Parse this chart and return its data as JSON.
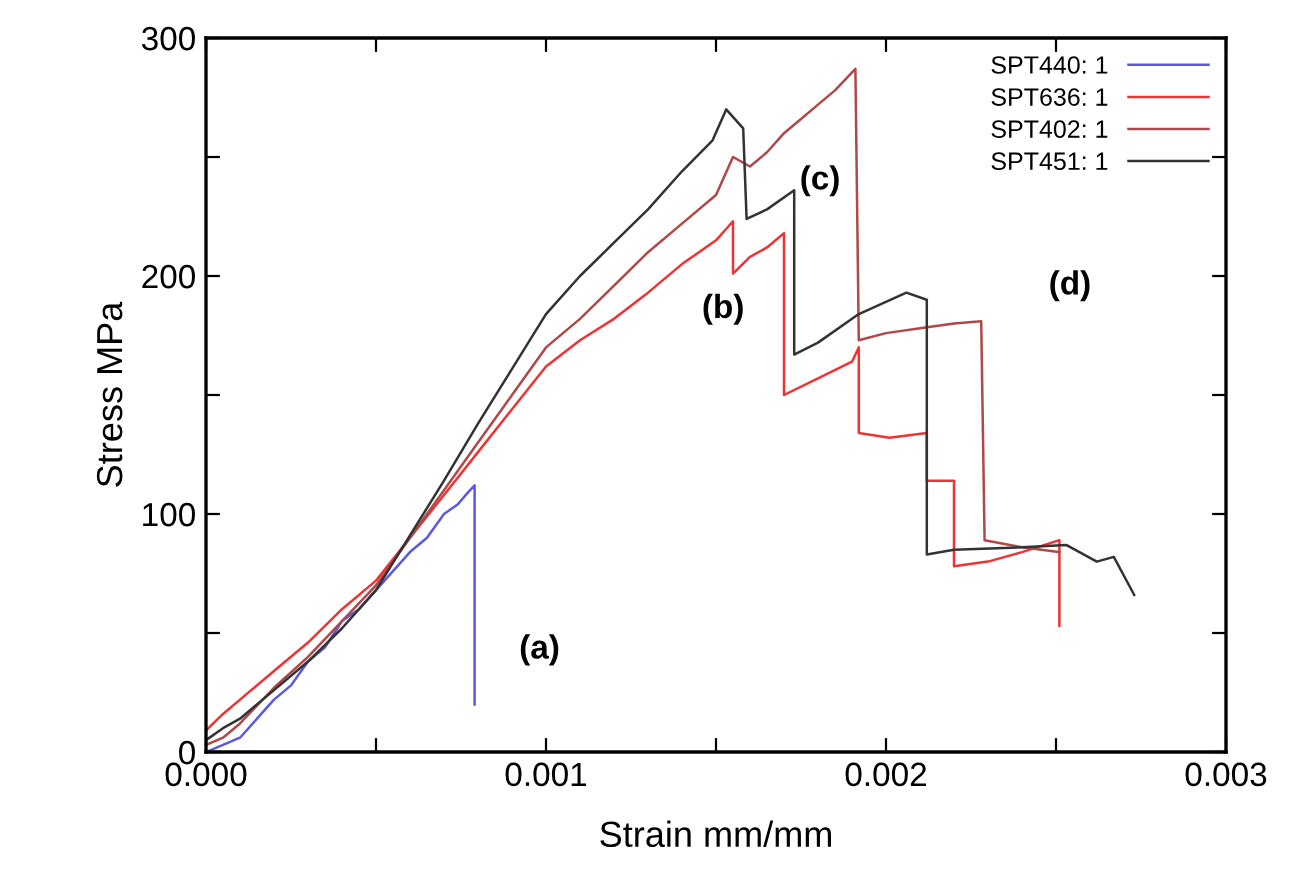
{
  "chart_data": {
    "type": "line",
    "xlabel": "Strain mm/mm",
    "ylabel": "Stress MPa",
    "xlim": [
      0,
      0.003
    ],
    "ylim": [
      0,
      300
    ],
    "xticks": [
      {
        "value": 0,
        "label": "0.000"
      },
      {
        "value": 0.0005,
        "label": null
      },
      {
        "value": 0.001,
        "label": "0.001"
      },
      {
        "value": 0.0015,
        "label": null
      },
      {
        "value": 0.002,
        "label": "0.002"
      },
      {
        "value": 0.0025,
        "label": null
      },
      {
        "value": 0.003,
        "label": "0.003"
      }
    ],
    "yticks": [
      0,
      {
        "value": 50,
        "label": null
      },
      100,
      {
        "value": 150,
        "label": null
      },
      200,
      {
        "value": 250,
        "label": null
      },
      300
    ],
    "grid": false,
    "legend": "top right",
    "line_style": "solid",
    "marker": "none",
    "series": [
      {
        "name": "SPT440: 1",
        "color": "#5a5ae0",
        "x": [
          0,
          5e-05,
          0.0001,
          0.00015,
          0.0002,
          0.00025,
          0.0003,
          0.00035,
          0.0004,
          0.00045,
          0.0005,
          0.00055,
          0.0006,
          0.00065,
          0.0007,
          0.00074,
          0.00077,
          0.00079,
          0.00079
        ],
        "values": [
          0,
          3,
          6,
          14,
          22,
          28,
          38,
          44,
          55,
          60,
          68,
          76,
          84,
          90,
          100,
          104,
          109,
          112,
          20
        ]
      },
      {
        "name": "SPT636: 1",
        "color": "#ee3333",
        "x": [
          0,
          5e-05,
          0.0001,
          0.0002,
          0.0003,
          0.0004,
          0.0005,
          0.0006,
          0.0007,
          0.0008,
          0.0009,
          0.001,
          0.0011,
          0.0012,
          0.0013,
          0.0014,
          0.0015,
          0.00155,
          0.00155,
          0.0016,
          0.00165,
          0.0017,
          0.0017,
          0.0018,
          0.0019,
          0.00192,
          0.00192,
          0.00201,
          0.00212,
          0.00212,
          0.0022,
          0.0022,
          0.0023,
          0.0024,
          0.00251,
          0.00251
        ],
        "values": [
          9,
          16,
          22,
          34,
          46,
          60,
          72,
          90,
          108,
          126,
          144,
          162,
          173,
          182,
          193,
          205,
          215,
          223,
          201,
          208,
          212,
          218,
          150,
          157,
          164,
          170,
          134,
          132,
          134,
          114,
          114,
          78,
          80,
          84,
          89,
          53
        ]
      },
      {
        "name": "SPT402: 1",
        "color": "#b04848",
        "x": [
          0,
          5e-05,
          0.0001,
          0.0002,
          0.0003,
          0.0004,
          0.0005,
          0.0006,
          0.0007,
          0.0008,
          0.0009,
          0.001,
          0.0011,
          0.0012,
          0.0013,
          0.0014,
          0.0015,
          0.00155,
          0.0016,
          0.00165,
          0.0017,
          0.00175,
          0.0018,
          0.00185,
          0.00191,
          0.00192,
          0.002,
          0.0021,
          0.0022,
          0.00228,
          0.00229,
          0.0024,
          0.00251
        ],
        "values": [
          3,
          6,
          12,
          27,
          40,
          55,
          70,
          90,
          110,
          130,
          150,
          170,
          182,
          196,
          210,
          222,
          234,
          250,
          246,
          252,
          260,
          266,
          272,
          278,
          287,
          173,
          176,
          178,
          180,
          181,
          89,
          86,
          84
        ]
      },
      {
        "name": "SPT451: 1",
        "color": "#333333",
        "x": [
          0,
          5e-05,
          0.0001,
          0.0002,
          0.0003,
          0.0004,
          0.0005,
          0.0006,
          0.0007,
          0.0008,
          0.0009,
          0.001,
          0.0011,
          0.0012,
          0.0013,
          0.0014,
          0.00149,
          0.00153,
          0.00158,
          0.00159,
          0.00165,
          0.00173,
          0.00173,
          0.0018,
          0.00192,
          0.00206,
          0.00212,
          0.00212,
          0.0022,
          0.0024,
          0.00253,
          0.00262,
          0.00267,
          0.00273
        ],
        "values": [
          5,
          10,
          14,
          26,
          38,
          52,
          68,
          91,
          114,
          138,
          161,
          184,
          200,
          214,
          228,
          244,
          257,
          270,
          262,
          224,
          228,
          236,
          167,
          172,
          184,
          193,
          190,
          83,
          85,
          86,
          87,
          80,
          82,
          66
        ]
      }
    ],
    "annotations": [
      "(a)",
      "(b)",
      "(c)",
      "(d)"
    ]
  }
}
